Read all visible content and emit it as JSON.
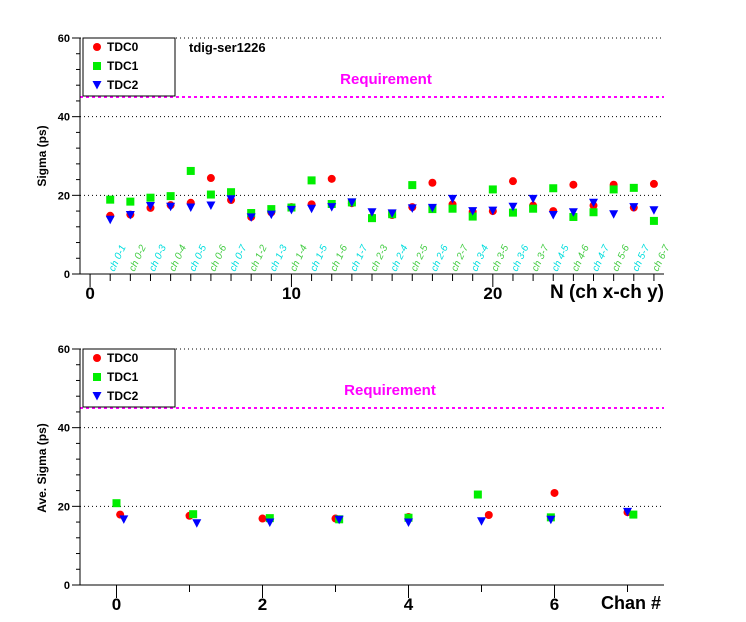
{
  "colors": {
    "tdc0": "#ff0000",
    "tdc1": "#00ee00",
    "tdc2": "#0000ff",
    "requirement": "#ff00ff",
    "label_even": "#44cc44",
    "label_odd": "#00dddd"
  },
  "chart_data": [
    {
      "type": "scatter",
      "title": "",
      "annotation": "tdig-ser1226",
      "xlabel": "N (ch x-ch y)",
      "ylabel": "Sigma (ps)",
      "xlim": [
        -0.5,
        28.5
      ],
      "ylim": [
        0,
        60
      ],
      "x_ticks": [
        "0",
        "10",
        "20"
      ],
      "x_tick_values": [
        0,
        10,
        20
      ],
      "y_ticks": [
        "0",
        "20",
        "40",
        "60"
      ],
      "y_tick_values": [
        0,
        20,
        40,
        60
      ],
      "grid": "horizontal dotted",
      "legend_position": "top-left",
      "requirement": {
        "label": "Requirement",
        "value": 45
      },
      "channel_labels": [
        "ch 0-1",
        "ch 0-2",
        "ch 0-3",
        "ch 0-4",
        "ch 0-5",
        "ch 0-6",
        "ch 0-7",
        "ch 1-2",
        "ch 1-3",
        "ch 1-4",
        "ch 1-5",
        "ch 1-6",
        "ch 1-7",
        "ch 2-3",
        "ch 2-4",
        "ch 2-5",
        "ch 2-6",
        "ch 2-7",
        "ch 3-4",
        "ch 3-5",
        "ch 3-6",
        "ch 3-7",
        "ch 4-5",
        "ch 4-6",
        "ch 4-7",
        "ch 5-6",
        "ch 5-7",
        "ch 6-7"
      ],
      "series": [
        {
          "name": "TDC0",
          "marker": "circle",
          "color_key": "tdc0",
          "x": [
            1,
            2,
            3,
            4,
            5,
            6,
            7,
            8,
            9,
            10,
            11,
            12,
            13,
            14,
            15,
            16,
            17,
            18,
            19,
            20,
            21,
            22,
            23,
            24,
            25,
            26,
            27,
            28
          ],
          "y": [
            14.8,
            15.1,
            16.8,
            17.5,
            18.1,
            24.4,
            18.8,
            14.5,
            15.7,
            17.0,
            17.7,
            24.2,
            18.0,
            14.4,
            15.0,
            17.0,
            23.2,
            17.7,
            15.8,
            16.0,
            23.6,
            17.4,
            16.0,
            22.7,
            17.4,
            22.7,
            16.9,
            22.9
          ]
        },
        {
          "name": "TDC1",
          "marker": "square",
          "color_key": "tdc1",
          "x": [
            1,
            2,
            3,
            4,
            5,
            6,
            7,
            8,
            9,
            10,
            11,
            12,
            13,
            14,
            15,
            16,
            17,
            18,
            19,
            20,
            21,
            22,
            23,
            24,
            25,
            26,
            27,
            28
          ],
          "y": [
            18.9,
            18.4,
            19.4,
            19.8,
            26.2,
            20.2,
            20.8,
            15.5,
            16.5,
            16.9,
            23.8,
            17.8,
            18.2,
            14.2,
            15.2,
            22.6,
            16.5,
            16.6,
            14.6,
            21.5,
            15.6,
            16.6,
            21.8,
            14.5,
            15.7,
            21.5,
            21.9,
            13.5
          ]
        },
        {
          "name": "TDC2",
          "marker": "triangle-down",
          "color_key": "tdc2",
          "x": [
            1,
            2,
            3,
            4,
            5,
            6,
            7,
            8,
            9,
            10,
            11,
            12,
            13,
            14,
            15,
            16,
            17,
            18,
            19,
            20,
            21,
            22,
            23,
            24,
            25,
            26,
            27,
            28
          ],
          "y": [
            13.8,
            15.0,
            17.3,
            17.1,
            16.9,
            17.4,
            19.0,
            14.4,
            15.1,
            16.3,
            16.6,
            17.0,
            18.2,
            15.7,
            15.4,
            16.7,
            16.8,
            19.1,
            16.0,
            16.1,
            17.1,
            19.1,
            15.0,
            15.7,
            18.1,
            15.2,
            17.0,
            16.2
          ]
        }
      ]
    },
    {
      "type": "scatter",
      "title": "",
      "xlabel": "Chan #",
      "ylabel": "Ave. Sigma (ps)",
      "xlim": [
        -0.5,
        7.5
      ],
      "ylim": [
        0,
        60
      ],
      "x_ticks": [
        "0",
        "2",
        "4",
        "6"
      ],
      "x_tick_values": [
        0,
        2,
        4,
        6
      ],
      "y_ticks": [
        "0",
        "20",
        "40",
        "60"
      ],
      "y_tick_values": [
        0,
        20,
        40,
        60
      ],
      "grid": "horizontal dotted",
      "legend_position": "top-left",
      "requirement": {
        "label": "Requirement",
        "value": 45
      },
      "series": [
        {
          "name": "TDC0",
          "marker": "circle",
          "color_key": "tdc0",
          "x": [
            0.05,
            1.0,
            2.0,
            3.0,
            4.0,
            5.1,
            6.0,
            7.0
          ],
          "y": [
            17.9,
            17.6,
            16.9,
            16.9,
            17.3,
            17.8,
            23.4,
            18.5
          ]
        },
        {
          "name": "TDC1",
          "marker": "square",
          "color_key": "tdc1",
          "x": [
            0.0,
            1.05,
            2.1,
            3.05,
            4.0,
            4.95,
            5.95,
            7.08
          ],
          "y": [
            20.8,
            18.0,
            17.0,
            16.7,
            17.1,
            23.0,
            17.2,
            17.9
          ]
        },
        {
          "name": "TDC2",
          "marker": "triangle-down",
          "color_key": "tdc2",
          "x": [
            0.1,
            1.1,
            2.1,
            3.05,
            4.0,
            5.0,
            5.95,
            7.0
          ],
          "y": [
            16.7,
            15.7,
            15.9,
            16.6,
            15.9,
            16.2,
            16.6,
            18.6
          ]
        }
      ]
    }
  ]
}
